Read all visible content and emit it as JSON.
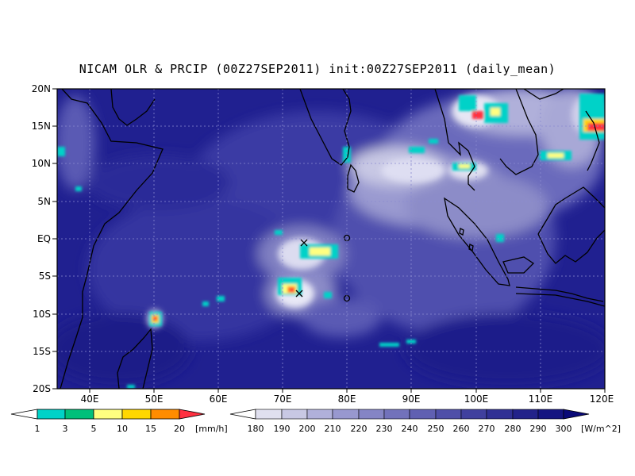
{
  "title": "NICAM OLR & PRCIP (00Z27SEP2011) init:00Z27SEP2011 (daily_mean)",
  "map": {
    "lon_range": [
      35,
      120
    ],
    "lat_range": [
      -20,
      20
    ],
    "lat_ticks": [
      "20N",
      "15N",
      "10N",
      "5N",
      "EQ",
      "5S",
      "10S",
      "15S",
      "20S"
    ],
    "lon_ticks": [
      "40E",
      "50E",
      "60E",
      "70E",
      "80E",
      "90E",
      "100E",
      "110E",
      "120E"
    ],
    "markers": [
      {
        "type": "cross",
        "lon": 73.0,
        "lat": -0.6
      },
      {
        "type": "cross",
        "lon": 72.5,
        "lat": -7.3
      },
      {
        "type": "circle",
        "lon": 80.0,
        "lat": 0.0
      },
      {
        "type": "circle",
        "lon": 80.0,
        "lat": -8.0
      }
    ]
  },
  "precip_colorbar": {
    "unit": "[mm/h]",
    "labels": [
      "1",
      "3",
      "5",
      "10",
      "15",
      "20"
    ],
    "colors": [
      "#ffffff",
      "#00d2c8",
      "#00c07a",
      "#ffff80",
      "#ffd700",
      "#ff8c00",
      "#ff3040"
    ]
  },
  "olr_colorbar": {
    "unit": "[W/m^2]",
    "labels": [
      "180",
      "190",
      "200",
      "210",
      "220",
      "230",
      "240",
      "250",
      "260",
      "270",
      "280",
      "290",
      "300"
    ],
    "colors": [
      "#ffffff",
      "#e0e0ef",
      "#c8c8e4",
      "#b0b0da",
      "#9898cf",
      "#8585c5",
      "#7272bb",
      "#6060b2",
      "#4f4fa8",
      "#40409e",
      "#303094",
      "#22228a",
      "#151581",
      "#0a0a78"
    ]
  }
}
